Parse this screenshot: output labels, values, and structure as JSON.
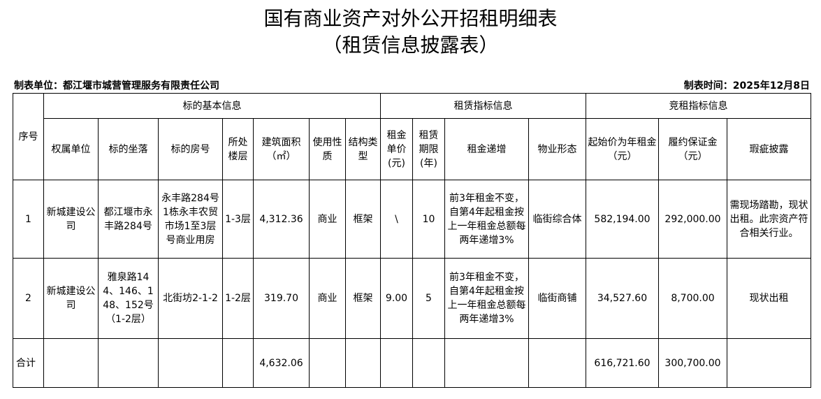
{
  "title": "国有商业资产对外公开招租明细表",
  "subtitle": "（租赁信息披露表）",
  "unit_label": "制表单位：都江堰市城营管理服务有限责任公司",
  "date_label": "制表时间：2025年12月8日",
  "groups": {
    "seq": "序号",
    "basic": "标的基本信息",
    "lease": "租赁指标信息",
    "bid": "竞租指标信息"
  },
  "columns": [
    "权属单位",
    "标的坐落",
    "标的房号",
    "所处楼层",
    "建筑面积（㎡）",
    "使用性质",
    "结构类型",
    "租金单价(元)",
    "租赁期限(年)",
    "租金递增",
    "物业形态",
    "起始价为年租金（元）",
    "履约保证金（元）",
    "瑕疵披露"
  ],
  "rows": [
    [
      "1",
      "新城建设公司",
      "都江堰市永丰路284号",
      "永丰路284号1栋永丰农贸市场1至3层号商业用房",
      "1-3层",
      "4,312.36",
      "商业",
      "框架",
      "\\",
      "10",
      "前3年租金不变，自第4年起租金按上一年租金总额每两年递增3%",
      "临街综合体",
      "582,194.00",
      "292,000.00",
      "需现场踏勘，现状出租。此宗资产符合相关行业。"
    ],
    [
      "2",
      "新城建设公司",
      "雅泉路144、146、148、152号（1-2层）",
      "北街坊2-1-2",
      "1-2层",
      "319.70",
      "商业",
      "框架",
      "9.00",
      "5",
      "前3年租金不变，自第4年起租金按上一年租金总额每两年递增3%",
      "临街商铺",
      "34,527.60",
      "8,700.00",
      "现状出租"
    ]
  ],
  "total": {
    "label": "合计",
    "area": "4,632.06",
    "start_price": "616,721.60",
    "deposit": "300,700.00"
  }
}
